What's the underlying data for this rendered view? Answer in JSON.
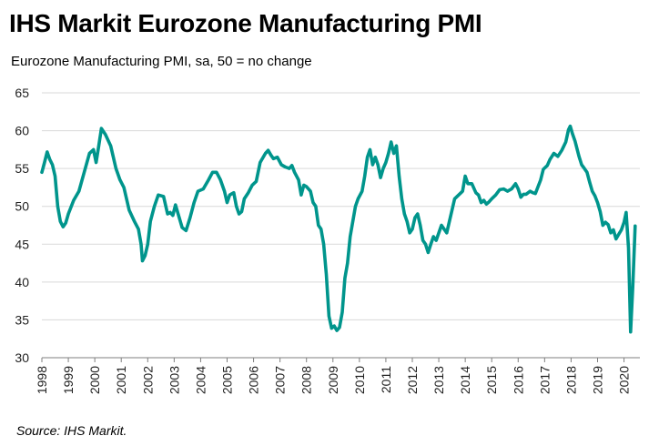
{
  "title": "IHS Markit Eurozone Manufacturing PMI",
  "subtitle": "Eurozone Manufacturing PMI, sa, 50 = no change",
  "source": "Source: IHS Markit.",
  "colors": {
    "line": "#00958C",
    "grid": "#d9d9d9",
    "axis": "#7f7f7f"
  },
  "chart_data": {
    "type": "line",
    "title": "IHS Markit Eurozone Manufacturing PMI",
    "subtitle": "Eurozone Manufacturing PMI, sa, 50 = no change",
    "xlabel": "",
    "ylabel": "",
    "ylim": [
      30,
      65
    ],
    "yticks": [
      30,
      35,
      40,
      45,
      50,
      55,
      60,
      65
    ],
    "xlim": [
      1998.0,
      2020.6
    ],
    "xticks": [
      "1998",
      "1999",
      "2000",
      "2001",
      "2002",
      "2003",
      "2004",
      "2005",
      "2006",
      "2007",
      "2008",
      "2009",
      "2010",
      "2011",
      "2012",
      "2013",
      "2014",
      "2015",
      "2016",
      "2017",
      "2018",
      "2019",
      "2020"
    ],
    "grid": "horizontal",
    "series": [
      {
        "name": "",
        "points": [
          [
            1998.0,
            54.5
          ],
          [
            1998.1,
            55.8
          ],
          [
            1998.2,
            57.2
          ],
          [
            1998.3,
            56.2
          ],
          [
            1998.4,
            55.5
          ],
          [
            1998.5,
            54.0
          ],
          [
            1998.6,
            50.0
          ],
          [
            1998.7,
            48.0
          ],
          [
            1998.8,
            47.3
          ],
          [
            1998.9,
            47.8
          ],
          [
            1999.0,
            49.0
          ],
          [
            1999.2,
            50.8
          ],
          [
            1999.4,
            52.0
          ],
          [
            1999.6,
            54.5
          ],
          [
            1999.8,
            57.0
          ],
          [
            1999.95,
            57.5
          ],
          [
            2000.05,
            55.8
          ],
          [
            2000.15,
            58.0
          ],
          [
            2000.25,
            60.3
          ],
          [
            2000.4,
            59.5
          ],
          [
            2000.6,
            58.0
          ],
          [
            2000.8,
            55.0
          ],
          [
            2000.95,
            53.5
          ],
          [
            2001.1,
            52.5
          ],
          [
            2001.3,
            49.5
          ],
          [
            2001.5,
            48.0
          ],
          [
            2001.65,
            47.0
          ],
          [
            2001.75,
            45.0
          ],
          [
            2001.8,
            42.8
          ],
          [
            2001.9,
            43.5
          ],
          [
            2002.0,
            45.0
          ],
          [
            2002.1,
            48.0
          ],
          [
            2002.25,
            50.0
          ],
          [
            2002.4,
            51.5
          ],
          [
            2002.6,
            51.3
          ],
          [
            2002.75,
            49.0
          ],
          [
            2002.85,
            49.2
          ],
          [
            2002.95,
            48.8
          ],
          [
            2003.05,
            50.2
          ],
          [
            2003.15,
            49.0
          ],
          [
            2003.3,
            47.2
          ],
          [
            2003.45,
            46.8
          ],
          [
            2003.6,
            48.5
          ],
          [
            2003.75,
            50.5
          ],
          [
            2003.9,
            52.0
          ],
          [
            2004.1,
            52.3
          ],
          [
            2004.3,
            53.5
          ],
          [
            2004.45,
            54.5
          ],
          [
            2004.6,
            54.5
          ],
          [
            2004.75,
            53.5
          ],
          [
            2004.9,
            52.0
          ],
          [
            2005.0,
            50.5
          ],
          [
            2005.1,
            51.5
          ],
          [
            2005.25,
            51.8
          ],
          [
            2005.35,
            50.0
          ],
          [
            2005.45,
            49.0
          ],
          [
            2005.55,
            49.3
          ],
          [
            2005.65,
            51.0
          ],
          [
            2005.8,
            51.8
          ],
          [
            2005.95,
            52.8
          ],
          [
            2006.1,
            53.3
          ],
          [
            2006.25,
            55.8
          ],
          [
            2006.45,
            57.0
          ],
          [
            2006.55,
            57.4
          ],
          [
            2006.65,
            56.8
          ],
          [
            2006.75,
            56.3
          ],
          [
            2006.9,
            56.5
          ],
          [
            2007.05,
            55.5
          ],
          [
            2007.2,
            55.2
          ],
          [
            2007.35,
            55.0
          ],
          [
            2007.45,
            55.4
          ],
          [
            2007.55,
            54.5
          ],
          [
            2007.7,
            53.5
          ],
          [
            2007.8,
            51.5
          ],
          [
            2007.9,
            52.8
          ],
          [
            2008.0,
            52.6
          ],
          [
            2008.15,
            52.0
          ],
          [
            2008.25,
            50.5
          ],
          [
            2008.35,
            50.0
          ],
          [
            2008.45,
            47.5
          ],
          [
            2008.55,
            47.0
          ],
          [
            2008.65,
            45.0
          ],
          [
            2008.75,
            41.0
          ],
          [
            2008.85,
            35.5
          ],
          [
            2008.95,
            33.9
          ],
          [
            2009.05,
            34.2
          ],
          [
            2009.15,
            33.6
          ],
          [
            2009.25,
            34.0
          ],
          [
            2009.35,
            36.0
          ],
          [
            2009.45,
            40.5
          ],
          [
            2009.55,
            42.5
          ],
          [
            2009.65,
            46.0
          ],
          [
            2009.75,
            48.0
          ],
          [
            2009.85,
            50.0
          ],
          [
            2009.95,
            51.0
          ],
          [
            2010.1,
            52.0
          ],
          [
            2010.2,
            54.0
          ],
          [
            2010.3,
            56.5
          ],
          [
            2010.4,
            57.5
          ],
          [
            2010.5,
            55.5
          ],
          [
            2010.6,
            56.5
          ],
          [
            2010.7,
            55.5
          ],
          [
            2010.8,
            53.8
          ],
          [
            2010.9,
            55.0
          ],
          [
            2011.0,
            55.8
          ],
          [
            2011.1,
            57.0
          ],
          [
            2011.2,
            58.5
          ],
          [
            2011.3,
            57.0
          ],
          [
            2011.4,
            58.0
          ],
          [
            2011.5,
            54.0
          ],
          [
            2011.6,
            51.0
          ],
          [
            2011.7,
            49.0
          ],
          [
            2011.8,
            48.0
          ],
          [
            2011.9,
            46.5
          ],
          [
            2012.0,
            47.0
          ],
          [
            2012.1,
            48.5
          ],
          [
            2012.2,
            49.0
          ],
          [
            2012.3,
            47.5
          ],
          [
            2012.4,
            45.5
          ],
          [
            2012.5,
            45.0
          ],
          [
            2012.6,
            43.9
          ],
          [
            2012.7,
            45.0
          ],
          [
            2012.8,
            46.0
          ],
          [
            2012.9,
            45.5
          ],
          [
            2013.0,
            46.5
          ],
          [
            2013.1,
            47.5
          ],
          [
            2013.2,
            47.0
          ],
          [
            2013.3,
            46.5
          ],
          [
            2013.4,
            48.0
          ],
          [
            2013.5,
            49.5
          ],
          [
            2013.6,
            51.0
          ],
          [
            2013.75,
            51.5
          ],
          [
            2013.9,
            52.0
          ],
          [
            2014.0,
            54.0
          ],
          [
            2014.1,
            53.0
          ],
          [
            2014.25,
            53.0
          ],
          [
            2014.4,
            51.8
          ],
          [
            2014.5,
            51.5
          ],
          [
            2014.6,
            50.5
          ],
          [
            2014.7,
            50.8
          ],
          [
            2014.8,
            50.3
          ],
          [
            2014.9,
            50.6
          ],
          [
            2015.0,
            51.0
          ],
          [
            2015.15,
            51.5
          ],
          [
            2015.3,
            52.2
          ],
          [
            2015.45,
            52.3
          ],
          [
            2015.6,
            52.0
          ],
          [
            2015.75,
            52.3
          ],
          [
            2015.9,
            53.0
          ],
          [
            2016.0,
            52.3
          ],
          [
            2016.1,
            51.2
          ],
          [
            2016.2,
            51.6
          ],
          [
            2016.3,
            51.6
          ],
          [
            2016.45,
            52.0
          ],
          [
            2016.55,
            51.8
          ],
          [
            2016.65,
            51.7
          ],
          [
            2016.75,
            52.6
          ],
          [
            2016.85,
            53.5
          ],
          [
            2016.95,
            54.9
          ],
          [
            2017.1,
            55.4
          ],
          [
            2017.2,
            56.2
          ],
          [
            2017.35,
            57.0
          ],
          [
            2017.5,
            56.6
          ],
          [
            2017.65,
            57.4
          ],
          [
            2017.8,
            58.5
          ],
          [
            2017.9,
            60.1
          ],
          [
            2017.97,
            60.6
          ],
          [
            2018.05,
            59.6
          ],
          [
            2018.15,
            58.6
          ],
          [
            2018.3,
            56.6
          ],
          [
            2018.4,
            55.5
          ],
          [
            2018.5,
            55.0
          ],
          [
            2018.6,
            54.5
          ],
          [
            2018.7,
            53.2
          ],
          [
            2018.8,
            52.0
          ],
          [
            2018.9,
            51.4
          ],
          [
            2019.0,
            50.5
          ],
          [
            2019.1,
            49.3
          ],
          [
            2019.2,
            47.5
          ],
          [
            2019.3,
            47.9
          ],
          [
            2019.4,
            47.6
          ],
          [
            2019.5,
            46.5
          ],
          [
            2019.6,
            46.9
          ],
          [
            2019.7,
            45.7
          ],
          [
            2019.8,
            46.3
          ],
          [
            2019.9,
            46.9
          ],
          [
            2020.0,
            47.9
          ],
          [
            2020.08,
            49.2
          ],
          [
            2020.17,
            44.5
          ],
          [
            2020.25,
            33.4
          ],
          [
            2020.33,
            39.4
          ],
          [
            2020.42,
            47.4
          ]
        ]
      }
    ]
  }
}
